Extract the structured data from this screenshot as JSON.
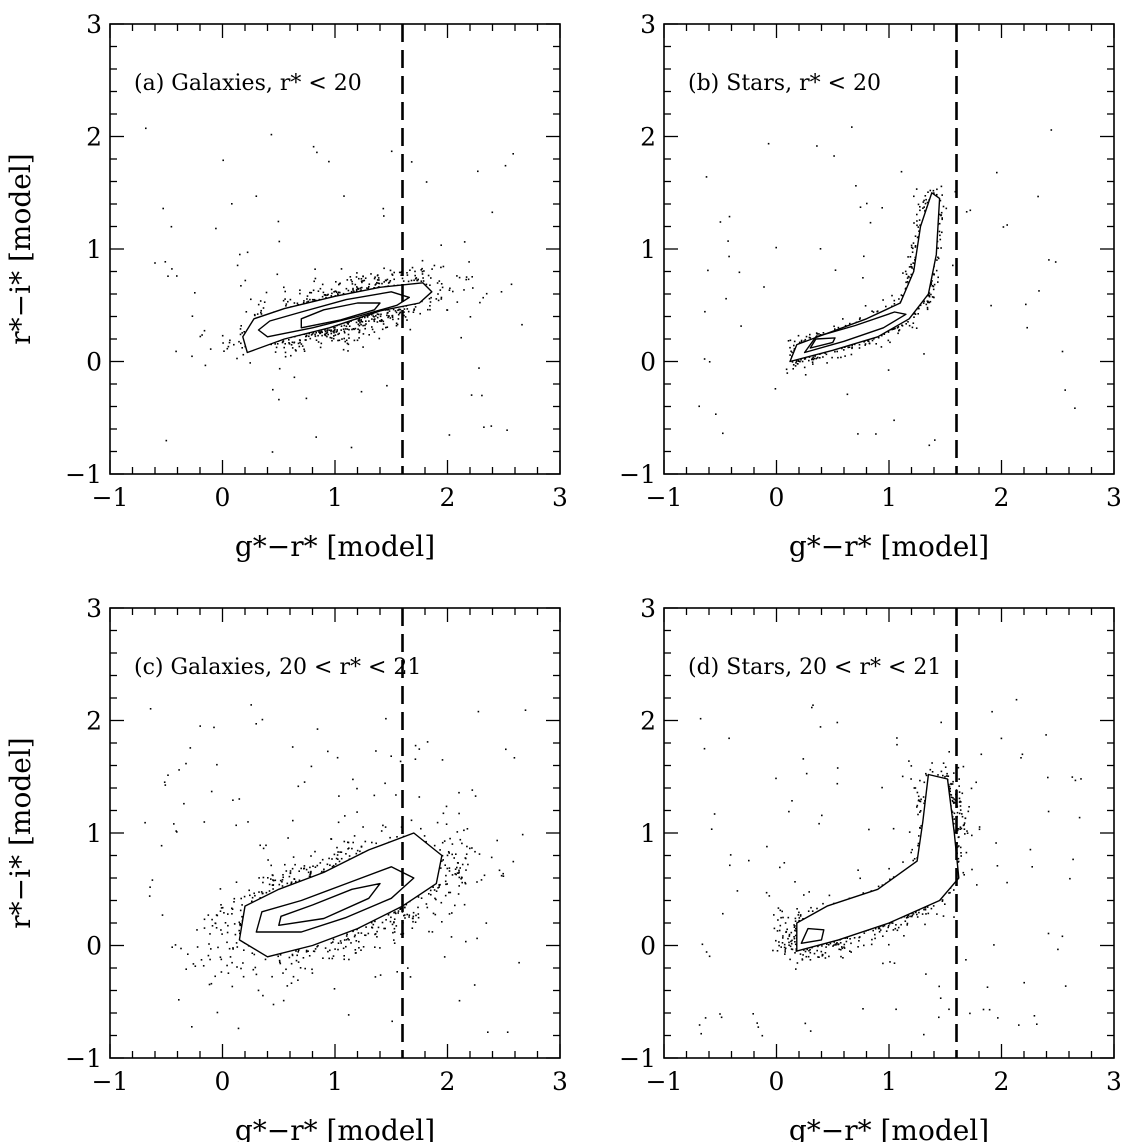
{
  "colors": {
    "ink": "#000000",
    "background": "#ffffff"
  },
  "chart_data": [
    {
      "type": "scatter",
      "panel_label": "(a) Galaxies, r* < 20",
      "xlabel": "g*−r* [model]",
      "ylabel": "r*−i* [model]",
      "xlim": [
        -1,
        3
      ],
      "ylim": [
        -1,
        3
      ],
      "xticks": [
        "−1",
        "0",
        "1",
        "2",
        "3"
      ],
      "yticks": [
        "−1",
        "0",
        "1",
        "2",
        "3"
      ],
      "cut_line_x": 1.6,
      "cut_line_style": "dashed",
      "distribution": {
        "center": [
          1.05,
          0.45
        ],
        "spread": [
          0.42,
          0.12
        ],
        "slope": 0.27,
        "n_points": 1400,
        "outlier_fraction": 0.05
      },
      "contours": [
        {
          "level": "outer",
          "points": [
            [
              0.22,
              0.08
            ],
            [
              0.55,
              0.2
            ],
            [
              0.95,
              0.3
            ],
            [
              1.4,
              0.45
            ],
            [
              1.75,
              0.52
            ],
            [
              1.86,
              0.62
            ],
            [
              1.78,
              0.7
            ],
            [
              1.4,
              0.66
            ],
            [
              1.0,
              0.58
            ],
            [
              0.55,
              0.47
            ],
            [
              0.28,
              0.38
            ],
            [
              0.18,
              0.22
            ]
          ]
        },
        {
          "level": "middle",
          "points": [
            [
              0.4,
              0.22
            ],
            [
              0.8,
              0.3
            ],
            [
              1.2,
              0.4
            ],
            [
              1.55,
              0.5
            ],
            [
              1.66,
              0.57
            ],
            [
              1.5,
              0.62
            ],
            [
              1.1,
              0.55
            ],
            [
              0.7,
              0.44
            ],
            [
              0.42,
              0.36
            ],
            [
              0.32,
              0.28
            ]
          ]
        },
        {
          "level": "inner",
          "points": [
            [
              0.7,
              0.3
            ],
            [
              1.05,
              0.37
            ],
            [
              1.35,
              0.46
            ],
            [
              1.4,
              0.52
            ],
            [
              1.2,
              0.52
            ],
            [
              0.9,
              0.46
            ],
            [
              0.7,
              0.38
            ]
          ]
        }
      ]
    },
    {
      "type": "scatter",
      "panel_label": "(b) Stars, r* < 20",
      "xlabel": "g*−r* [model]",
      "ylabel": "",
      "xlim": [
        -1,
        3
      ],
      "ylim": [
        -1,
        3
      ],
      "xticks": [
        "−1",
        "0",
        "1",
        "2",
        "3"
      ],
      "yticks": [
        "−1",
        "0",
        "1",
        "2",
        "3"
      ],
      "cut_line_x": 1.6,
      "cut_line_style": "dashed",
      "distribution": {
        "locus": [
          [
            0.15,
            0.05
          ],
          [
            0.5,
            0.18
          ],
          [
            0.85,
            0.3
          ],
          [
            1.1,
            0.42
          ],
          [
            1.25,
            0.6
          ],
          [
            1.32,
            0.95
          ],
          [
            1.38,
            1.45
          ]
        ],
        "width": 0.06,
        "n_points": 1300,
        "outlier_fraction": 0.05
      },
      "contours": [
        {
          "level": "outer",
          "points": [
            [
              0.12,
              0.0
            ],
            [
              0.5,
              0.1
            ],
            [
              0.9,
              0.22
            ],
            [
              1.18,
              0.38
            ],
            [
              1.35,
              0.6
            ],
            [
              1.42,
              0.95
            ],
            [
              1.45,
              1.45
            ],
            [
              1.38,
              1.5
            ],
            [
              1.28,
              1.2
            ],
            [
              1.22,
              0.8
            ],
            [
              1.1,
              0.52
            ],
            [
              0.8,
              0.38
            ],
            [
              0.45,
              0.25
            ],
            [
              0.18,
              0.15
            ]
          ]
        },
        {
          "level": "middle",
          "points": [
            [
              0.25,
              0.08
            ],
            [
              0.6,
              0.18
            ],
            [
              0.95,
              0.3
            ],
            [
              1.15,
              0.42
            ],
            [
              1.05,
              0.44
            ],
            [
              0.7,
              0.32
            ],
            [
              0.35,
              0.22
            ]
          ]
        },
        {
          "level": "inner",
          "points": [
            [
              0.3,
              0.12
            ],
            [
              0.5,
              0.17
            ],
            [
              0.52,
              0.21
            ],
            [
              0.35,
              0.2
            ]
          ]
        }
      ]
    },
    {
      "type": "scatter",
      "panel_label": "(c) Galaxies, 20 < r* < 21",
      "xlabel": "g*−r* [model]",
      "ylabel": "r*−i* [model]",
      "xlim": [
        -1,
        3
      ],
      "ylim": [
        -1,
        3
      ],
      "xticks": [
        "−1",
        "0",
        "1",
        "2",
        "3"
      ],
      "yticks": [
        "−1",
        "0",
        "1",
        "2",
        "3"
      ],
      "cut_line_x": 1.6,
      "cut_line_style": "dashed",
      "distribution": {
        "center": [
          1.05,
          0.4
        ],
        "spread": [
          0.5,
          0.22
        ],
        "slope": 0.3,
        "n_points": 1900,
        "outlier_fraction": 0.06
      },
      "contours": [
        {
          "level": "outer",
          "points": [
            [
              0.15,
              0.05
            ],
            [
              0.4,
              -0.1
            ],
            [
              0.8,
              0.0
            ],
            [
              1.2,
              0.15
            ],
            [
              1.6,
              0.35
            ],
            [
              1.9,
              0.55
            ],
            [
              1.95,
              0.8
            ],
            [
              1.7,
              1.0
            ],
            [
              1.3,
              0.85
            ],
            [
              0.9,
              0.65
            ],
            [
              0.5,
              0.5
            ],
            [
              0.2,
              0.35
            ]
          ]
        },
        {
          "level": "middle",
          "points": [
            [
              0.3,
              0.12
            ],
            [
              0.7,
              0.12
            ],
            [
              1.1,
              0.25
            ],
            [
              1.5,
              0.42
            ],
            [
              1.7,
              0.6
            ],
            [
              1.5,
              0.7
            ],
            [
              1.1,
              0.55
            ],
            [
              0.7,
              0.4
            ],
            [
              0.35,
              0.3
            ]
          ]
        },
        {
          "level": "inner",
          "points": [
            [
              0.5,
              0.18
            ],
            [
              0.9,
              0.24
            ],
            [
              1.3,
              0.42
            ],
            [
              1.4,
              0.55
            ],
            [
              1.15,
              0.5
            ],
            [
              0.8,
              0.36
            ],
            [
              0.52,
              0.26
            ]
          ]
        }
      ]
    },
    {
      "type": "scatter",
      "panel_label": "(d) Stars, 20 < r* < 21",
      "xlabel": "g*−r* [model]",
      "ylabel": "",
      "xlim": [
        -1,
        3
      ],
      "ylim": [
        -1,
        3
      ],
      "xticks": [
        "−1",
        "0",
        "1",
        "2",
        "3"
      ],
      "yticks": [
        "−1",
        "0",
        "1",
        "2",
        "3"
      ],
      "cut_line_x": 1.6,
      "cut_line_style": "dashed",
      "distribution": {
        "locus": [
          [
            0.1,
            0.05
          ],
          [
            0.5,
            0.15
          ],
          [
            0.9,
            0.28
          ],
          [
            1.25,
            0.45
          ],
          [
            1.4,
            0.65
          ],
          [
            1.45,
            1.0
          ],
          [
            1.45,
            1.45
          ]
        ],
        "width": 0.1,
        "n_points": 2100,
        "outlier_fraction": 0.06
      },
      "contours": [
        {
          "level": "outer",
          "points": [
            [
              0.18,
              -0.05
            ],
            [
              0.55,
              0.05
            ],
            [
              1.0,
              0.2
            ],
            [
              1.45,
              0.4
            ],
            [
              1.62,
              0.6
            ],
            [
              1.58,
              1.0
            ],
            [
              1.52,
              1.48
            ],
            [
              1.35,
              1.52
            ],
            [
              1.3,
              1.1
            ],
            [
              1.25,
              0.75
            ],
            [
              0.9,
              0.5
            ],
            [
              0.45,
              0.35
            ],
            [
              0.18,
              0.2
            ]
          ]
        },
        {
          "level": "inner",
          "points": [
            [
              0.22,
              0.02
            ],
            [
              0.4,
              0.05
            ],
            [
              0.42,
              0.14
            ],
            [
              0.28,
              0.15
            ]
          ]
        }
      ]
    }
  ]
}
